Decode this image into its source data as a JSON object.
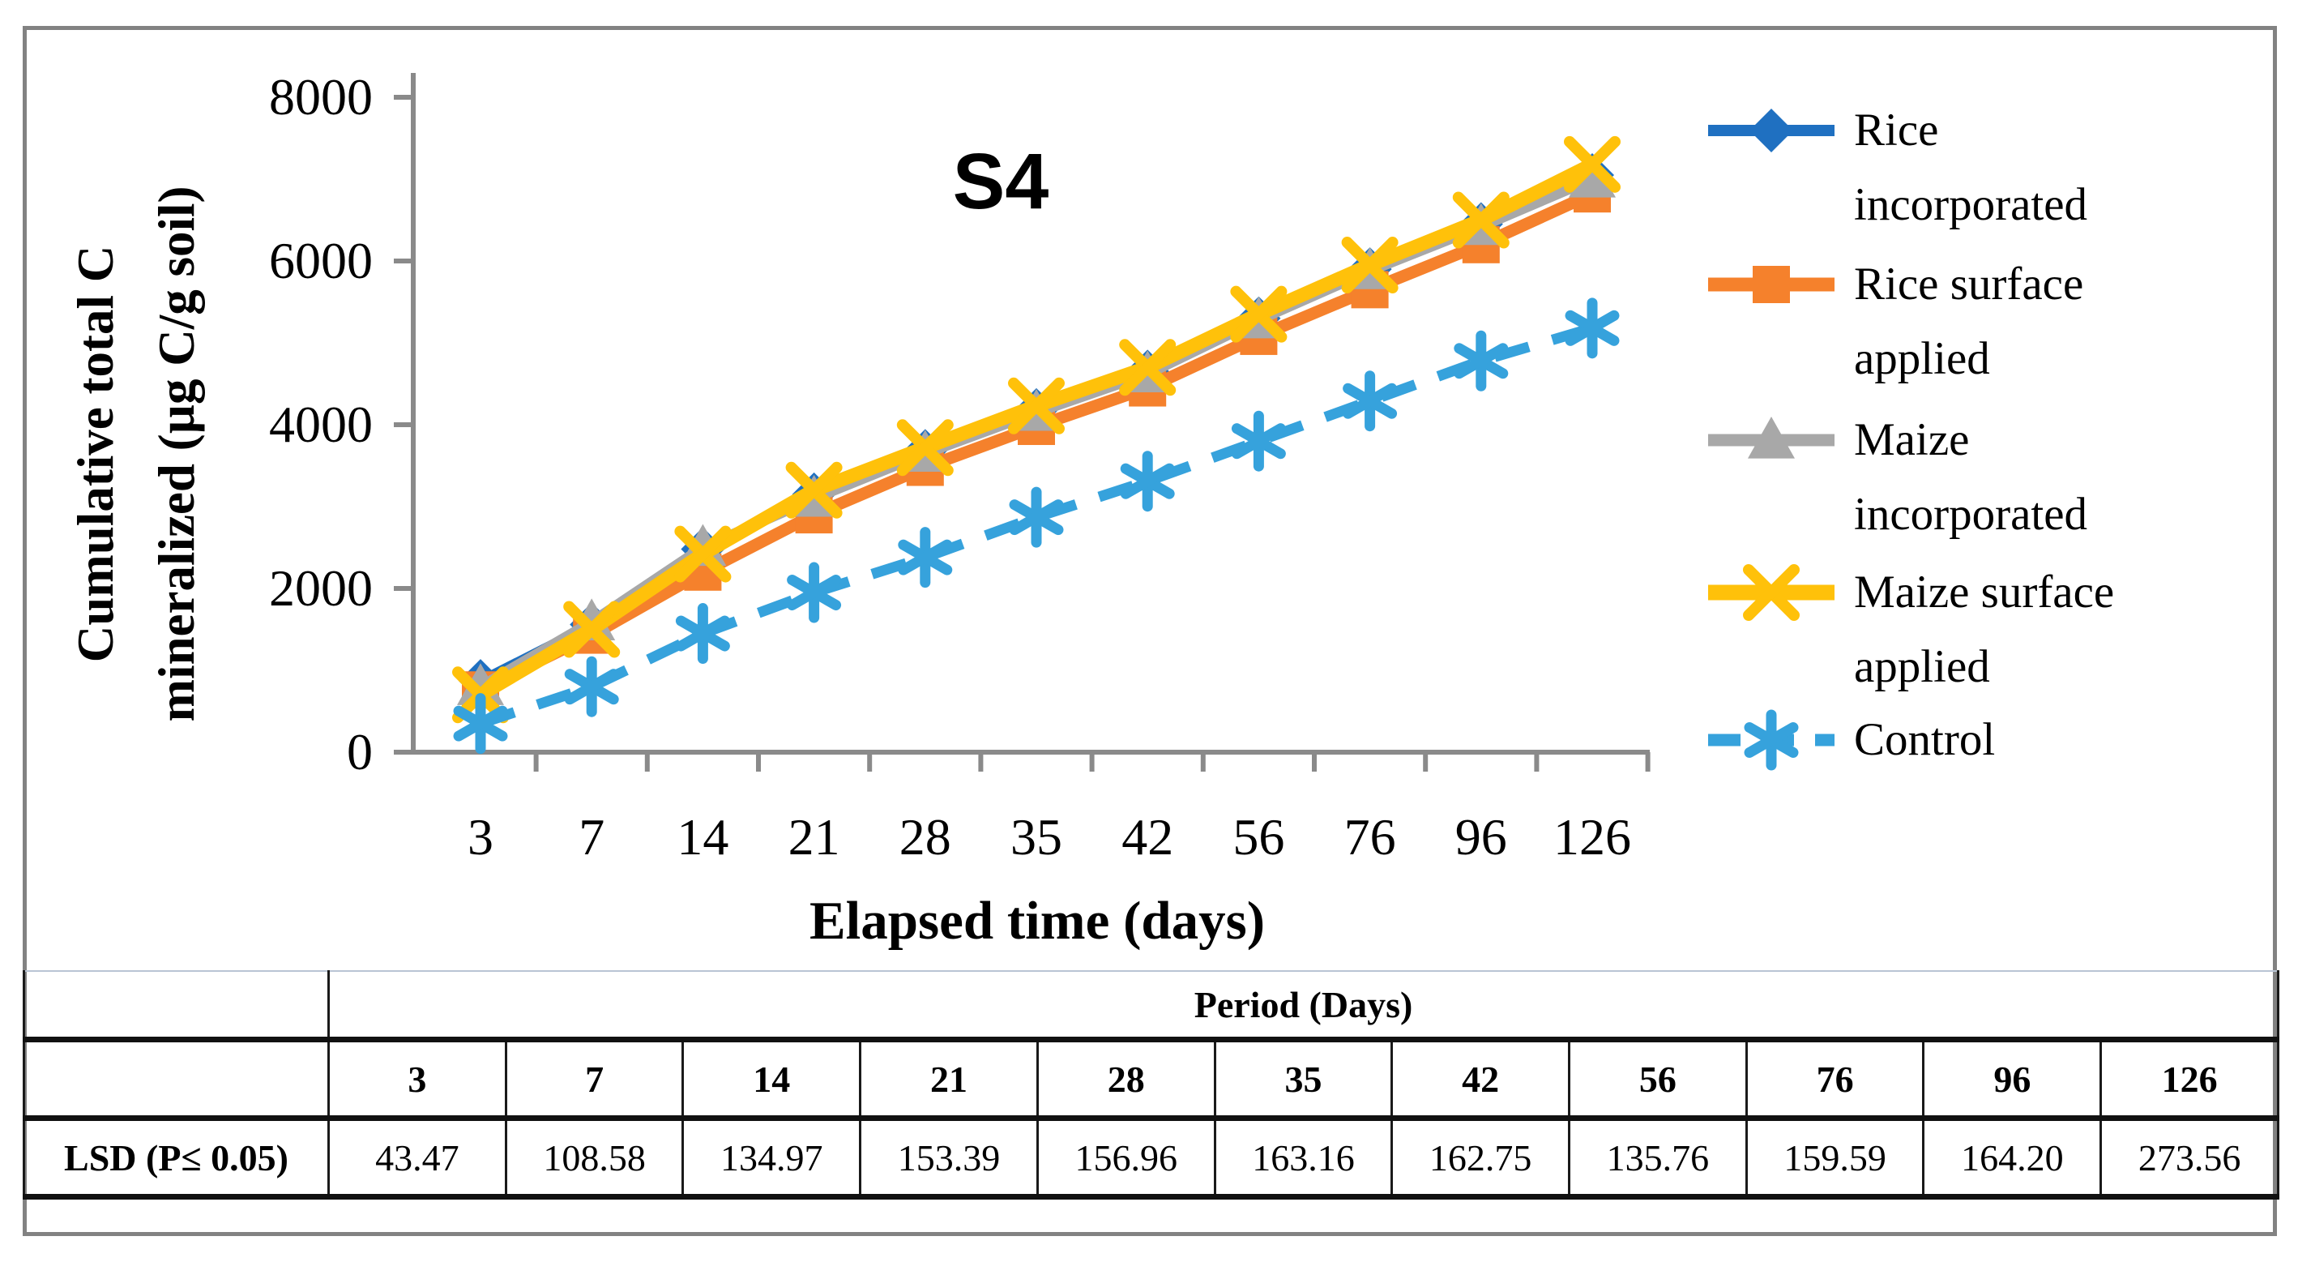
{
  "figure": {
    "title": "S4",
    "y_axis_title": "Cumulative  total C\nmineralized (µg C/g soil)",
    "x_axis_title": "Elapsed time (days)"
  },
  "chart_data": {
    "type": "line",
    "title": "S4",
    "xlabel": "Elapsed time (days)",
    "ylabel": "Cumulative total C mineralized (µg C/g soil)",
    "categories": [
      "3",
      "7",
      "14",
      "21",
      "28",
      "35",
      "42",
      "56",
      "76",
      "96",
      "126"
    ],
    "ylim": [
      0,
      8000
    ],
    "y_ticks": [
      "0",
      "2000",
      "4000",
      "6000",
      "8000"
    ],
    "grid": false,
    "legend_position": "right",
    "series": [
      {
        "name": "Rice incorporated",
        "label": "Rice\nincorporated",
        "color": "#1F70C1",
        "marker": "diamond",
        "dashed": false,
        "values": [
          870,
          1560,
          2480,
          3150,
          3680,
          4180,
          4650,
          5300,
          5900,
          6450,
          7050
        ]
      },
      {
        "name": "Rice surface applied",
        "label": "Rice surface\napplied",
        "color": "#F5812C",
        "marker": "square",
        "dashed": false,
        "values": [
          760,
          1430,
          2200,
          2900,
          3480,
          3980,
          4450,
          5080,
          5650,
          6200,
          6820
        ]
      },
      {
        "name": "Maize incorporated",
        "label": "Maize\nincorporated",
        "color": "#A8A8A8",
        "marker": "triangle",
        "dashed": false,
        "values": [
          800,
          1590,
          2500,
          3100,
          3650,
          4150,
          4620,
          5280,
          5880,
          6420,
          7000
        ]
      },
      {
        "name": "Maize surface applied",
        "label": "Maize surface\napplied",
        "color": "#FFC10A",
        "marker": "x",
        "dashed": false,
        "values": [
          700,
          1500,
          2420,
          3200,
          3720,
          4230,
          4700,
          5350,
          5950,
          6500,
          7180
        ]
      },
      {
        "name": "Control",
        "label": "Control",
        "color": "#36A2DC",
        "marker": "asterisk",
        "dashed": true,
        "values": [
          350,
          800,
          1450,
          1950,
          2380,
          2870,
          3310,
          3800,
          4290,
          4780,
          5180
        ]
      }
    ]
  },
  "table": {
    "header": "Period (Days)",
    "columns": [
      "3",
      "7",
      "14",
      "21",
      "28",
      "35",
      "42",
      "56",
      "76",
      "96",
      "126"
    ],
    "rows": [
      {
        "label": "LSD (P≤ 0.05)",
        "values": [
          "43.47",
          "108.58",
          "134.97",
          "153.39",
          "156.96",
          "163.16",
          "162.75",
          "135.76",
          "159.59",
          "164.20",
          "273.56"
        ]
      }
    ]
  }
}
